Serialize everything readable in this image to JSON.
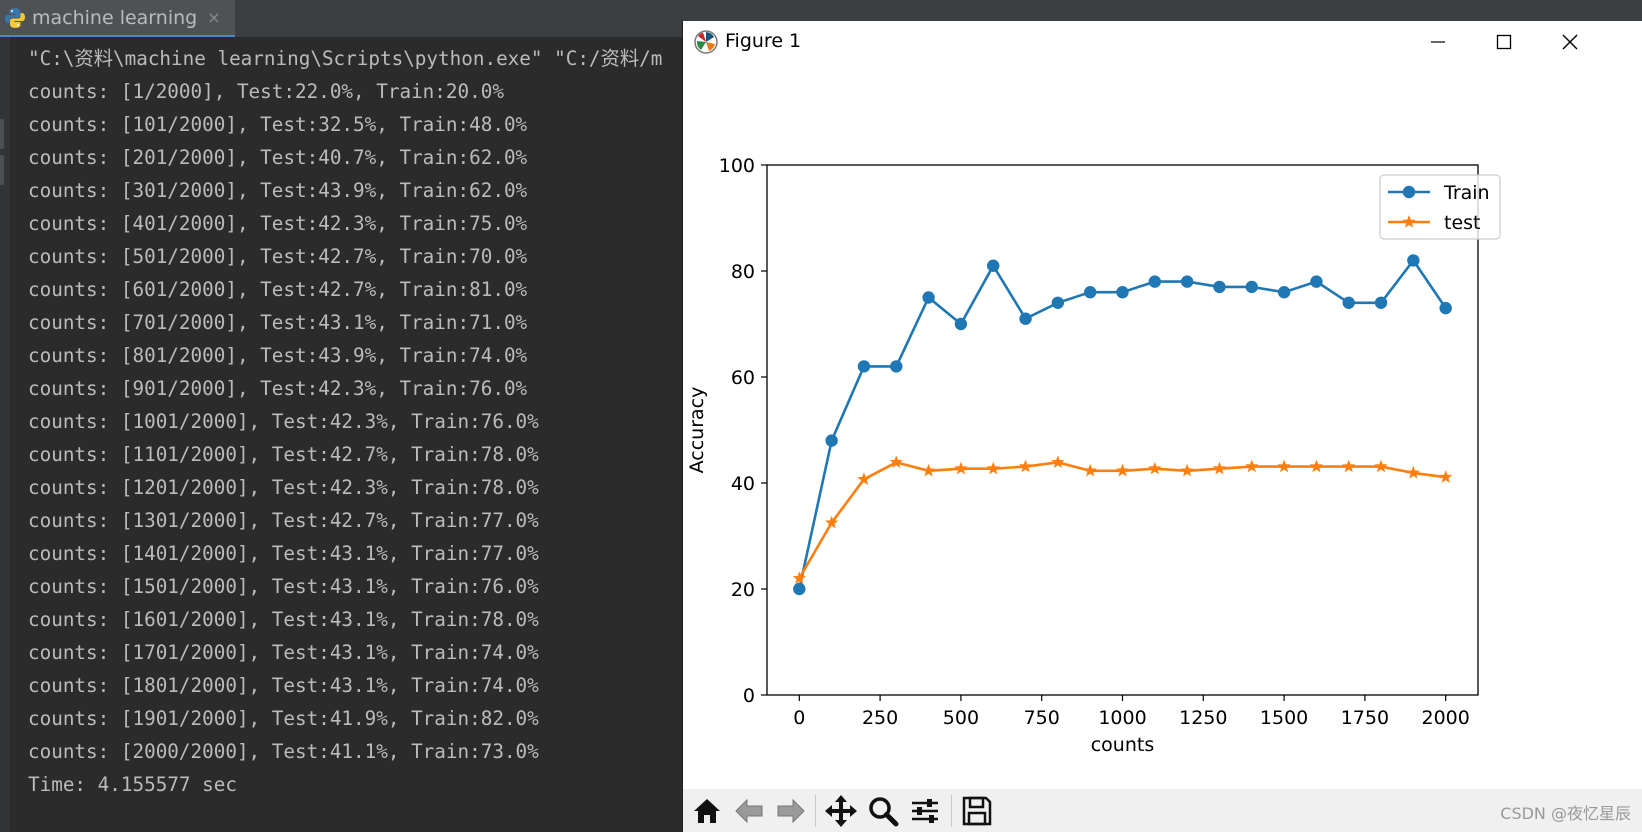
{
  "ide": {
    "tab_label": "machine learning",
    "tab_close": "×"
  },
  "console": {
    "command_line": "\"C:\\资料\\machine learning\\Scripts\\python.exe\" \"C:/资料/m",
    "lines": [
      "counts: [1/2000], Test:22.0%, Train:20.0%",
      "counts: [101/2000], Test:32.5%, Train:48.0%",
      "counts: [201/2000], Test:40.7%, Train:62.0%",
      "counts: [301/2000], Test:43.9%, Train:62.0%",
      "counts: [401/2000], Test:42.3%, Train:75.0%",
      "counts: [501/2000], Test:42.7%, Train:70.0%",
      "counts: [601/2000], Test:42.7%, Train:81.0%",
      "counts: [701/2000], Test:43.1%, Train:71.0%",
      "counts: [801/2000], Test:43.9%, Train:74.0%",
      "counts: [901/2000], Test:42.3%, Train:76.0%",
      "counts: [1001/2000], Test:42.3%, Train:76.0%",
      "counts: [1101/2000], Test:42.7%, Train:78.0%",
      "counts: [1201/2000], Test:42.3%, Train:78.0%",
      "counts: [1301/2000], Test:42.7%, Train:77.0%",
      "counts: [1401/2000], Test:43.1%, Train:77.0%",
      "counts: [1501/2000], Test:43.1%, Train:76.0%",
      "counts: [1601/2000], Test:43.1%, Train:78.0%",
      "counts: [1701/2000], Test:43.1%, Train:74.0%",
      "counts: [1801/2000], Test:43.1%, Train:74.0%",
      "counts: [1901/2000], Test:41.9%, Train:82.0%",
      "counts: [2000/2000], Test:41.1%, Train:73.0%",
      "Time: 4.155577 sec"
    ]
  },
  "figure": {
    "window_title": "Figure 1",
    "minimize_icon": "minimize-icon",
    "maximize_icon": "maximize-icon",
    "close_icon": "close-icon",
    "toolbar_icons": [
      "home-icon",
      "back-arrow-icon",
      "forward-arrow-icon",
      "pan-icon",
      "zoom-icon",
      "configure-subplots-icon",
      "save-icon"
    ]
  },
  "watermark": "CSDN @夜忆星辰",
  "chart_data": {
    "type": "line",
    "title": "",
    "xlabel": "counts",
    "ylabel": "Accuracy",
    "xlim": [
      -100,
      2100
    ],
    "ylim": [
      0,
      100
    ],
    "xticks": [
      0,
      250,
      500,
      750,
      1000,
      1250,
      1500,
      1750,
      2000
    ],
    "yticks": [
      0,
      20,
      40,
      60,
      80,
      100
    ],
    "grid": false,
    "legend_position": "top-right",
    "x": [
      0,
      100,
      200,
      300,
      400,
      500,
      600,
      700,
      800,
      900,
      1000,
      1100,
      1200,
      1300,
      1400,
      1500,
      1600,
      1700,
      1800,
      1900,
      2000
    ],
    "series": [
      {
        "name": "Train",
        "color": "#1f77b4",
        "marker": "circle",
        "values": [
          20.0,
          48.0,
          62.0,
          62.0,
          75.0,
          70.0,
          81.0,
          71.0,
          74.0,
          76.0,
          76.0,
          78.0,
          78.0,
          77.0,
          77.0,
          76.0,
          78.0,
          74.0,
          74.0,
          82.0,
          73.0
        ]
      },
      {
        "name": "test",
        "color": "#ff7f0e",
        "marker": "star",
        "values": [
          22.0,
          32.5,
          40.7,
          43.9,
          42.3,
          42.7,
          42.7,
          43.1,
          43.9,
          42.3,
          42.3,
          42.7,
          42.3,
          42.7,
          43.1,
          43.1,
          43.1,
          43.1,
          43.1,
          41.9,
          41.1
        ]
      }
    ]
  }
}
